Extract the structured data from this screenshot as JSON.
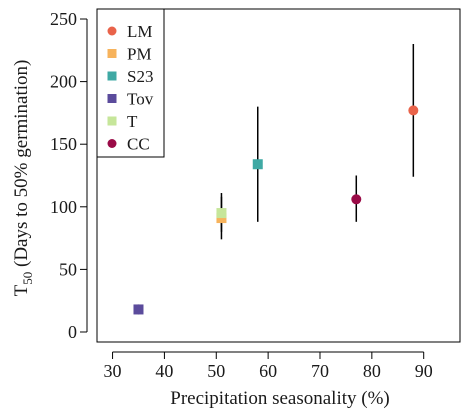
{
  "chart_data": {
    "type": "scatter",
    "xlabel": "Precipitation seasonality (%)",
    "ylabel_main": "T",
    "ylabel_sub": "50",
    "ylabel_rest": " (Days to 50% germination)",
    "xlim": [
      27,
      97
    ],
    "ylim": [
      -8,
      258
    ],
    "xticks": [
      30,
      40,
      50,
      60,
      70,
      80,
      90
    ],
    "yticks": [
      0,
      50,
      100,
      150,
      200,
      250
    ],
    "legend_position": "top-left",
    "series": [
      {
        "name": "LM",
        "marker": "circle",
        "color": "#e9634a",
        "x": 88,
        "y": 177,
        "ymin": 124,
        "ymax": 230
      },
      {
        "name": "PM",
        "marker": "square",
        "color": "#f7b35c",
        "x": 51,
        "y": 91,
        "ymin": 74,
        "ymax": 111
      },
      {
        "name": "S23",
        "marker": "square",
        "color": "#3fa9a4",
        "x": 58,
        "y": 134,
        "ymin": 88,
        "ymax": 180
      },
      {
        "name": "Tov",
        "marker": "square",
        "color": "#5b4b9c",
        "x": 35,
        "y": 18,
        "ymin": 14,
        "ymax": 22
      },
      {
        "name": "T",
        "marker": "square",
        "color": "#c6e69a",
        "x": 51,
        "y": 95,
        "ymin": 80,
        "ymax": 108
      },
      {
        "name": "CC",
        "marker": "circle",
        "color": "#9a0b47",
        "x": 77,
        "y": 106,
        "ymin": 88,
        "ymax": 125
      }
    ]
  }
}
